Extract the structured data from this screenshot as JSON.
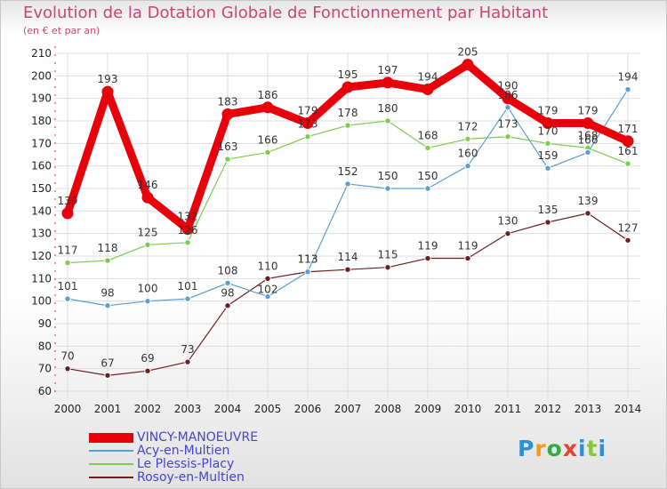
{
  "chart_data": {
    "type": "line",
    "title": "Evolution de la Dotation Globale de Fonctionnement par Habitant",
    "subtitle": "(en € et par an)",
    "xlabel": "",
    "ylabel": "",
    "x": [
      "2000",
      "2001",
      "2002",
      "2003",
      "2004",
      "2005",
      "2006",
      "2007",
      "2008",
      "2009",
      "2010",
      "2011",
      "2012",
      "2013",
      "2014"
    ],
    "ylim": [
      60,
      210
    ],
    "yticks": [
      60,
      70,
      80,
      90,
      100,
      110,
      120,
      130,
      140,
      150,
      160,
      170,
      180,
      190,
      200,
      210
    ],
    "grid": true,
    "legend_position": "bottom-left",
    "series": [
      {
        "name": "VINCY-MANOEUVRE",
        "color": "#e8000b",
        "values": [
          139,
          193,
          146,
          132,
          183,
          186,
          179,
          195,
          197,
          194,
          205,
          190,
          179,
          179,
          171
        ]
      },
      {
        "name": "Acy-en-Multien",
        "color": "#5a9fd4",
        "values": [
          101,
          98,
          100,
          101,
          108,
          102,
          113,
          152,
          150,
          150,
          160,
          186,
          159,
          166,
          194
        ]
      },
      {
        "name": "Le Plessis-Placy",
        "color": "#7ccc4e",
        "values": [
          117,
          118,
          125,
          126,
          163,
          166,
          173,
          178,
          180,
          168,
          172,
          173,
          170,
          168,
          161
        ]
      },
      {
        "name": "Rosoy-en-Multien",
        "color": "#6b1f1f",
        "values": [
          70,
          67,
          69,
          73,
          98,
          110,
          113,
          114,
          115,
          119,
          119,
          130,
          135,
          139,
          127
        ]
      }
    ]
  },
  "logo": {
    "p": "P",
    "r": "r",
    "o": "o",
    "x": "x",
    "i": "i",
    "t": "t",
    "i2": "i"
  }
}
